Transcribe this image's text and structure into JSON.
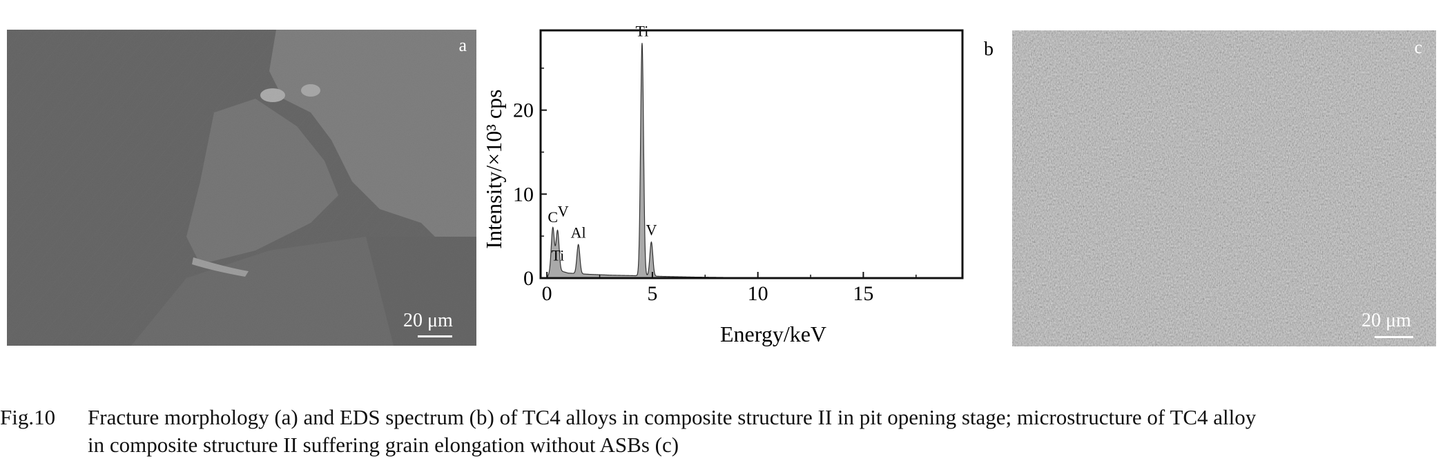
{
  "figure": {
    "panel_a": {
      "label": "a",
      "scale_bar": "20 μm"
    },
    "panel_c": {
      "label": "c",
      "scale_bar": "20 μm"
    },
    "caption": {
      "label": "Fig.10",
      "line1": "Fracture morphology (a) and EDS spectrum (b) of TC4 alloys in composite structure II in pit opening stage; microstructure of TC4 alloy",
      "line2": "in composite structure II suffering grain elongation without ASBs (c)"
    }
  },
  "chart_data": {
    "type": "line",
    "panel_label": "b",
    "xlabel": "Energy/keV",
    "ylabel": "Intensity/×10³ cps",
    "xlim": [
      -0.3,
      19.7
    ],
    "ylim": [
      0,
      29.5
    ],
    "xticks": [
      0,
      5,
      10,
      15
    ],
    "yticks": [
      0,
      10,
      20
    ],
    "peaks": [
      {
        "label": "C",
        "x": 0.28,
        "y": 6.0
      },
      {
        "label": "Ti",
        "x": 0.45,
        "y": 1.6
      },
      {
        "label": "V",
        "x": 0.51,
        "y": 5.2
      },
      {
        "label": "Al",
        "x": 1.49,
        "y": 4.0
      },
      {
        "label": "Ti",
        "x": 4.51,
        "y": 28.0
      },
      {
        "label": "V",
        "x": 4.95,
        "y": 4.3
      }
    ],
    "background": [
      [
        0.0,
        0.0
      ],
      [
        0.2,
        1.0
      ],
      [
        0.6,
        0.9
      ],
      [
        1.0,
        0.6
      ],
      [
        2.0,
        0.45
      ],
      [
        3.0,
        0.35
      ],
      [
        4.0,
        0.3
      ],
      [
        5.5,
        0.2
      ],
      [
        7.0,
        0.12
      ],
      [
        9.0,
        0.06
      ],
      [
        12.0,
        0.02
      ],
      [
        19.7,
        0.0
      ]
    ],
    "peak_width_kev": 0.07,
    "fill_color": "#a9a9a9",
    "grid": false
  }
}
